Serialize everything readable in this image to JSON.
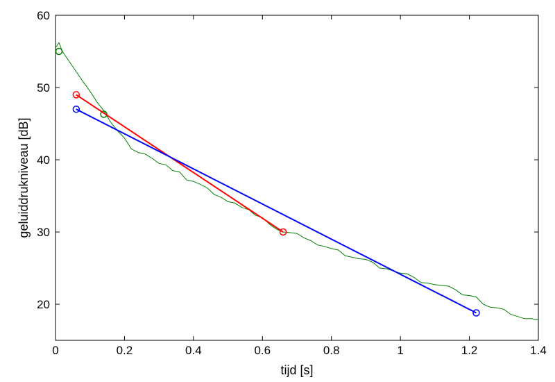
{
  "chart_data": {
    "type": "line",
    "title": "",
    "xlabel": "tijd [s]",
    "ylabel": "geluiddrukniveau  [dB]",
    "xlim": [
      0,
      1.4
    ],
    "ylim": [
      15,
      60
    ],
    "xticks": [
      0,
      0.2,
      0.4,
      0.6,
      0.8,
      1,
      1.2,
      1.4
    ],
    "xtick_labels": [
      "0",
      "0.2",
      "0.4",
      "0.6",
      "0.8",
      "1",
      "1.2",
      "1.4"
    ],
    "yticks": [
      20,
      30,
      40,
      50,
      60
    ],
    "ytick_labels": [
      "20",
      "30",
      "40",
      "50",
      "60"
    ],
    "grid": false,
    "series": [
      {
        "color": "#008000",
        "marker": "none",
        "x": [
          0,
          0.01,
          0.02,
          0.04,
          0.06,
          0.08,
          0.1,
          0.12,
          0.14,
          0.16,
          0.18,
          0.2,
          0.22,
          0.24,
          0.26,
          0.28,
          0.3,
          0.32,
          0.34,
          0.36,
          0.38,
          0.4,
          0.42,
          0.44,
          0.46,
          0.48,
          0.5,
          0.52,
          0.54,
          0.56,
          0.58,
          0.6,
          0.62,
          0.64,
          0.66,
          0.68,
          0.7,
          0.72,
          0.74,
          0.76,
          0.78,
          0.8,
          0.82,
          0.84,
          0.86,
          0.88,
          0.9,
          0.92,
          0.94,
          0.96,
          0.98,
          1.0,
          1.02,
          1.04,
          1.06,
          1.08,
          1.1,
          1.12,
          1.14,
          1.16,
          1.18,
          1.2,
          1.22,
          1.24,
          1.26,
          1.28,
          1.3,
          1.32,
          1.34,
          1.36,
          1.38,
          1.4
        ],
        "y": [
          55.5,
          56.2,
          55.0,
          53.6,
          52.2,
          50.8,
          49.5,
          48.0,
          46.8,
          45.2,
          44.0,
          43.0,
          41.5,
          41.0,
          40.8,
          40.2,
          39.5,
          39.3,
          38.5,
          38.3,
          37.2,
          37.0,
          36.6,
          36.1,
          35.2,
          34.8,
          34.2,
          34.0,
          33.4,
          33.1,
          32.3,
          32.0,
          31.1,
          30.4,
          30.0,
          29.9,
          29.8,
          29.2,
          28.8,
          28.2,
          28.0,
          27.7,
          27.5,
          26.7,
          26.5,
          26.3,
          26.2,
          25.8,
          25.0,
          24.9,
          24.6,
          24.3,
          24.2,
          23.7,
          23.0,
          22.9,
          22.7,
          22.6,
          22.5,
          22.0,
          21.3,
          21.2,
          21.0,
          20.0,
          19.6,
          19.5,
          19.3,
          18.6,
          18.3,
          18.0,
          18.0,
          17.8
        ]
      },
      {
        "color": "#008000",
        "marker": "circle",
        "x": [
          0.01,
          0.14
        ],
        "y": [
          55,
          46.3
        ],
        "line": false
      },
      {
        "color": "#ff0000",
        "marker": "circle",
        "x": [
          0.06,
          0.66
        ],
        "y": [
          49,
          30
        ]
      },
      {
        "color": "#0000ff",
        "marker": "circle",
        "x": [
          0.06,
          1.22
        ],
        "y": [
          47,
          18.8
        ]
      }
    ]
  }
}
